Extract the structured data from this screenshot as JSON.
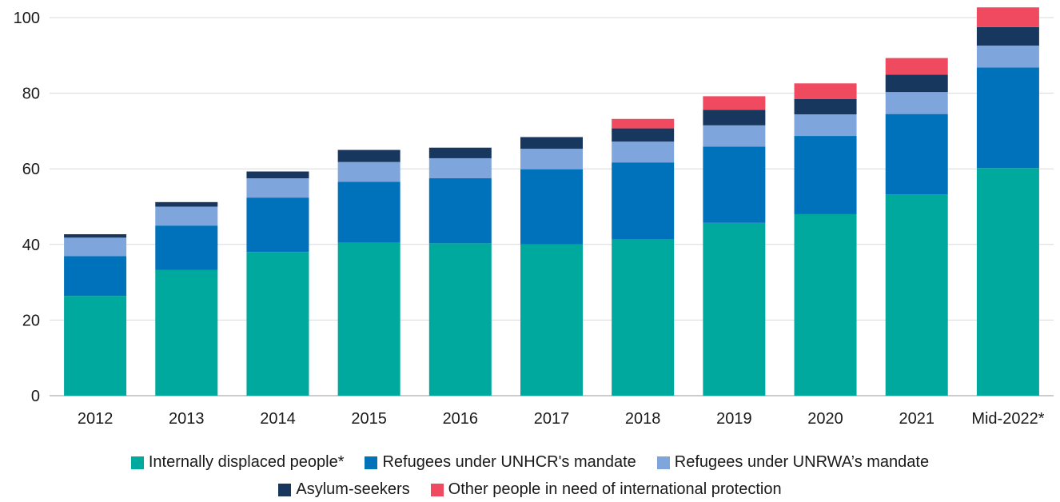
{
  "chart_data": {
    "type": "bar",
    "stacked": true,
    "categories": [
      "2012",
      "2013",
      "2014",
      "2015",
      "2016",
      "2017",
      "2018",
      "2019",
      "2020",
      "2021",
      "Mid-2022*"
    ],
    "ylim": [
      0,
      100
    ],
    "yticks": [
      0,
      20,
      40,
      60,
      80,
      100
    ],
    "grid": true,
    "legend_position": "bottom",
    "series": [
      {
        "name": "Internally displaced people*",
        "color": "#00a99d",
        "values": [
          26.4,
          33.3,
          38.0,
          40.5,
          40.3,
          40.0,
          41.3,
          45.7,
          48.0,
          53.2,
          60.2
        ]
      },
      {
        "name": "Refugees under UNHCR's mandate",
        "color": "#0072bc",
        "values": [
          10.5,
          11.7,
          14.4,
          16.1,
          17.2,
          19.9,
          20.4,
          20.2,
          20.7,
          21.3,
          26.6
        ]
      },
      {
        "name": "Refugees under UNRWA’s mandate",
        "color": "#7ea6dc",
        "values": [
          4.9,
          5.0,
          5.1,
          5.2,
          5.3,
          5.4,
          5.5,
          5.6,
          5.7,
          5.8,
          5.8
        ]
      },
      {
        "name": "Asylum-seekers",
        "color": "#18375f",
        "values": [
          0.9,
          1.2,
          1.8,
          3.2,
          2.8,
          3.1,
          3.5,
          4.1,
          4.1,
          4.6,
          4.9
        ]
      },
      {
        "name": "Other people in need of international protection",
        "color": "#ef4a60",
        "values": [
          0,
          0,
          0,
          0,
          0,
          0,
          2.5,
          3.6,
          4.1,
          4.4,
          5.2
        ]
      }
    ]
  }
}
